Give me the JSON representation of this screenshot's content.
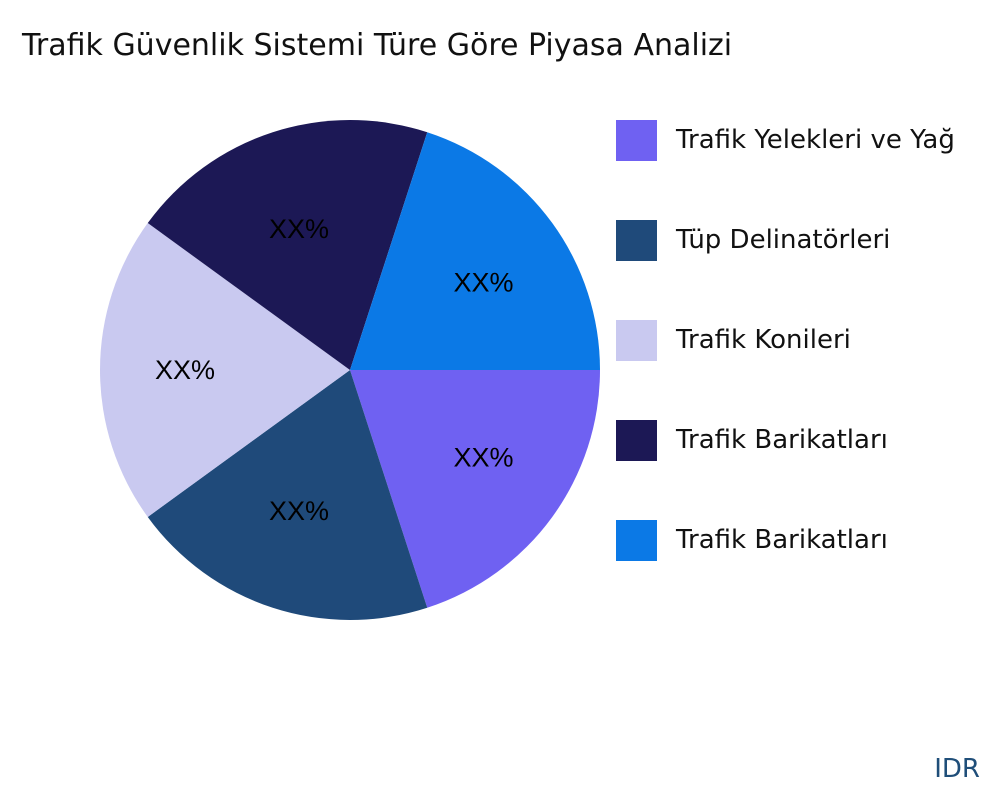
{
  "chart_data": {
    "type": "pie",
    "title": "Trafik Güvenlik Sistemi Türe Göre Piyasa Analizi",
    "categories": [
      "Trafik Yelekleri ve Yağ",
      "Tüp Delinatörleri",
      "Trafik Konileri",
      "Trafik Barikatları",
      "Trafik Barikatları"
    ],
    "values": [
      20,
      20,
      20,
      20,
      20
    ],
    "data_labels": [
      "XX%",
      "XX%",
      "XX%",
      "XX%",
      "XX%"
    ],
    "colors": [
      "#6f61f2",
      "#1f4a7a",
      "#c9c9f0",
      "#1c1855",
      "#0b79e6"
    ],
    "legend_placement": "right"
  },
  "brand": "IDR"
}
